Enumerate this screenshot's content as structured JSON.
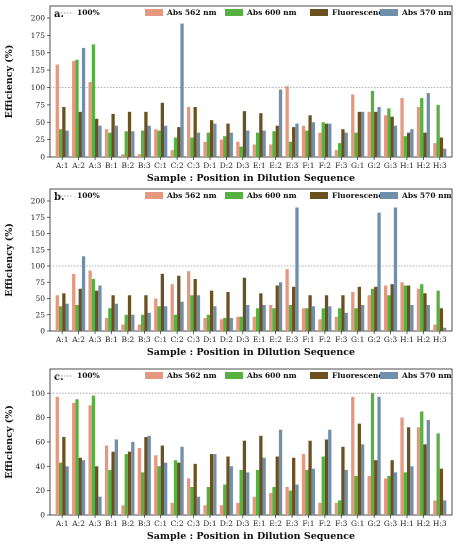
{
  "colors": {
    "ref_line": "#999999",
    "abs562": "#e5987d",
    "abs600": "#58b040",
    "fluor": "#6b5020",
    "abs570": "#6f8faa"
  },
  "legend": [
    {
      "key": "ref",
      "label": "100%",
      "kind": "line",
      "color": "#999999"
    },
    {
      "key": "abs562",
      "label": "Abs 562 nm",
      "kind": "box",
      "color": "#e5987d"
    },
    {
      "key": "abs600",
      "label": "Abs 600 nm",
      "kind": "box",
      "color": "#58b040"
    },
    {
      "key": "fluor",
      "label": "Fluorescence",
      "kind": "box",
      "color": "#6b5020"
    },
    {
      "key": "abs570",
      "label": "Abs 570 nm",
      "kind": "box",
      "color": "#6f8faa"
    }
  ],
  "chart_data": [
    {
      "type": "bar",
      "panel_label": "a.",
      "xlabel": "Sample : Position in Dilution Sequence",
      "ylabel": "Efficiency (%)",
      "ylim": [
        0,
        200
      ],
      "yticks": [
        0,
        25,
        50,
        75,
        100,
        125,
        150,
        175,
        200
      ],
      "reference_line": 100,
      "grid": false,
      "legend_position": "top",
      "categories": [
        "A:1",
        "A:2",
        "A:3",
        "B:1",
        "B:2",
        "B:3",
        "C:1",
        "C:2",
        "C:3",
        "D:1",
        "D:2",
        "D:3",
        "E:1",
        "E:2",
        "E:3",
        "F:1",
        "F:2",
        "F:3",
        "G:1",
        "G:2",
        "G:3",
        "H:1",
        "H:2",
        "H:3"
      ],
      "series": [
        {
          "name": "Abs 562 nm",
          "color": "#e5987d",
          "values": [
            133,
            138,
            108,
            40,
            4,
            4,
            40,
            10,
            72,
            22,
            25,
            22,
            18,
            18,
            102,
            45,
            35,
            10,
            90,
            65,
            60,
            85,
            72,
            20
          ]
        },
        {
          "name": "Abs 600 nm",
          "color": "#58b040",
          "values": [
            40,
            140,
            162,
            35,
            37,
            38,
            38,
            28,
            28,
            35,
            30,
            15,
            35,
            37,
            22,
            38,
            50,
            20,
            35,
            95,
            70,
            30,
            85,
            75
          ]
        },
        {
          "name": "Fluorescence",
          "color": "#6b5020",
          "values": [
            72,
            65,
            55,
            62,
            65,
            65,
            78,
            43,
            72,
            53,
            48,
            66,
            63,
            45,
            43,
            60,
            48,
            40,
            65,
            65,
            58,
            35,
            35,
            28
          ]
        },
        {
          "name": "Abs 570 nm",
          "color": "#6f8faa",
          "values": [
            38,
            157,
            45,
            45,
            37,
            45,
            45,
            192,
            35,
            48,
            35,
            38,
            38,
            97,
            48,
            50,
            48,
            35,
            65,
            72,
            45,
            40,
            92,
            12
          ]
        }
      ]
    },
    {
      "type": "bar",
      "panel_label": "b.",
      "xlabel": "Sample : Position in Dilution Sequence",
      "ylabel": "Efficiency (%)",
      "ylim": [
        0,
        200
      ],
      "yticks": [
        0,
        25,
        50,
        75,
        100,
        125,
        150,
        175,
        200
      ],
      "reference_line": 100,
      "grid": false,
      "legend_position": "top",
      "categories": [
        "A:1",
        "A:2",
        "A:3",
        "B:1",
        "B:2",
        "B:3",
        "C:1",
        "C:2",
        "C:3",
        "D:1",
        "D:2",
        "D:3",
        "E:1",
        "E:2",
        "E:3",
        "F:1",
        "F:2",
        "F:3",
        "G:1",
        "G:2",
        "G:3",
        "H:1",
        "H:2",
        "H:3"
      ],
      "series": [
        {
          "name": "Abs 562 nm",
          "color": "#e5987d",
          "values": [
            55,
            88,
            93,
            20,
            10,
            10,
            50,
            72,
            92,
            20,
            18,
            22,
            22,
            40,
            95,
            35,
            18,
            22,
            60,
            55,
            70,
            75,
            65,
            10
          ]
        },
        {
          "name": "Abs 600 nm",
          "color": "#58b040",
          "values": [
            38,
            40,
            80,
            35,
            25,
            25,
            38,
            25,
            55,
            25,
            20,
            22,
            35,
            35,
            40,
            35,
            35,
            35,
            35,
            65,
            55,
            70,
            72,
            62
          ]
        },
        {
          "name": "Fluorescence",
          "color": "#6b5020",
          "values": [
            58,
            65,
            62,
            55,
            55,
            55,
            88,
            85,
            80,
            62,
            60,
            82,
            58,
            70,
            68,
            55,
            55,
            55,
            68,
            68,
            72,
            70,
            58,
            35
          ]
        },
        {
          "name": "Abs 570 nm",
          "color": "#6f8faa",
          "values": [
            42,
            115,
            70,
            42,
            25,
            28,
            38,
            45,
            55,
            38,
            20,
            40,
            40,
            75,
            190,
            38,
            38,
            28,
            40,
            182,
            190,
            40,
            40,
            5
          ]
        }
      ]
    },
    {
      "type": "bar",
      "panel_label": "c.",
      "xlabel": "Sample : Position in Dilution Sequence",
      "ylabel": "Efficiency (%)",
      "ylim": [
        0,
        110
      ],
      "yticks": [
        0,
        20,
        40,
        60,
        80,
        100
      ],
      "reference_line": 100,
      "grid": false,
      "legend_position": "top",
      "categories": [
        "A:1",
        "A:2",
        "A:3",
        "B:1",
        "B:2",
        "B:3",
        "C:1",
        "C:2",
        "C:3",
        "D:1",
        "D:2",
        "D:3",
        "E:1",
        "E:2",
        "E:3",
        "F:1",
        "F:2",
        "F:3",
        "G:1",
        "G:2",
        "G:3",
        "H:1",
        "H:2",
        "H:3"
      ],
      "series": [
        {
          "name": "Abs 562 nm",
          "color": "#e5987d",
          "values": [
            97,
            92,
            90,
            57,
            8,
            55,
            49,
            10,
            30,
            8,
            8,
            10,
            15,
            18,
            23,
            50,
            10,
            10,
            97,
            32,
            30,
            80,
            72,
            12
          ]
        },
        {
          "name": "Abs 600 nm",
          "color": "#58b040",
          "values": [
            43,
            95,
            98,
            37,
            50,
            35,
            40,
            45,
            23,
            23,
            25,
            37,
            37,
            23,
            20,
            37,
            48,
            12,
            32,
            100,
            32,
            35,
            85,
            67
          ]
        },
        {
          "name": "Fluorescence",
          "color": "#6b5020",
          "values": [
            64,
            47,
            40,
            52,
            52,
            64,
            57,
            43,
            42,
            50,
            48,
            61,
            65,
            48,
            47,
            61,
            62,
            56,
            75,
            45,
            45,
            72,
            58,
            38
          ]
        },
        {
          "name": "Abs 570 nm",
          "color": "#6f8faa",
          "values": [
            40,
            45,
            15,
            62,
            60,
            65,
            43,
            56,
            15,
            50,
            40,
            35,
            47,
            70,
            25,
            38,
            70,
            37,
            58,
            97,
            35,
            40,
            78,
            12
          ]
        }
      ]
    }
  ]
}
